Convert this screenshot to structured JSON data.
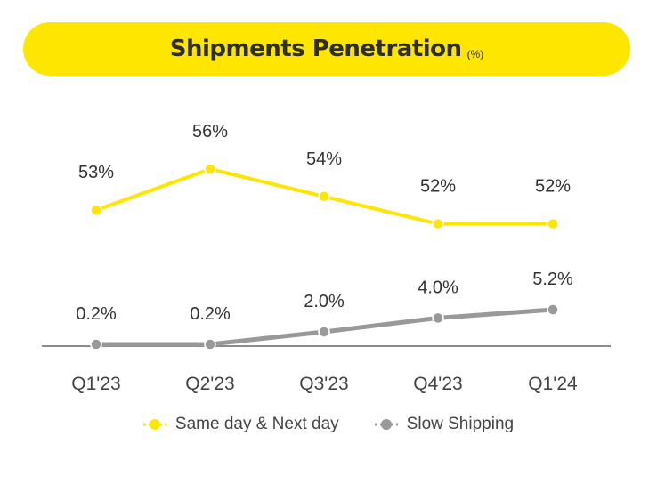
{
  "header": {
    "title": "Shipments Penetration",
    "unit": "(%)"
  },
  "colors": {
    "accent": "#ffe600",
    "series_yellow": "#ffe600",
    "series_gray": "#999999",
    "axis": "#8c8c8c",
    "text": "#333333"
  },
  "chart_data": {
    "type": "line",
    "title": "Shipments Penetration",
    "categories": [
      "Q1'23",
      "Q2'23",
      "Q3'23",
      "Q4'23",
      "Q1'24"
    ],
    "series": [
      {
        "name": "Same day & Next day",
        "values": [
          53,
          56,
          54,
          52,
          52
        ],
        "labels": [
          "53%",
          "56%",
          "54%",
          "52%",
          "52%"
        ]
      },
      {
        "name": "Slow Shipping",
        "values": [
          0.2,
          0.2,
          2.0,
          4.0,
          5.2
        ],
        "labels": [
          "0.2%",
          "0.2%",
          "2.0%",
          "4.0%",
          "5.2%"
        ]
      }
    ],
    "legend_position": "bottom",
    "grid": false
  },
  "legend": [
    {
      "label": "Same day & Next day"
    },
    {
      "label": "Slow Shipping"
    }
  ]
}
